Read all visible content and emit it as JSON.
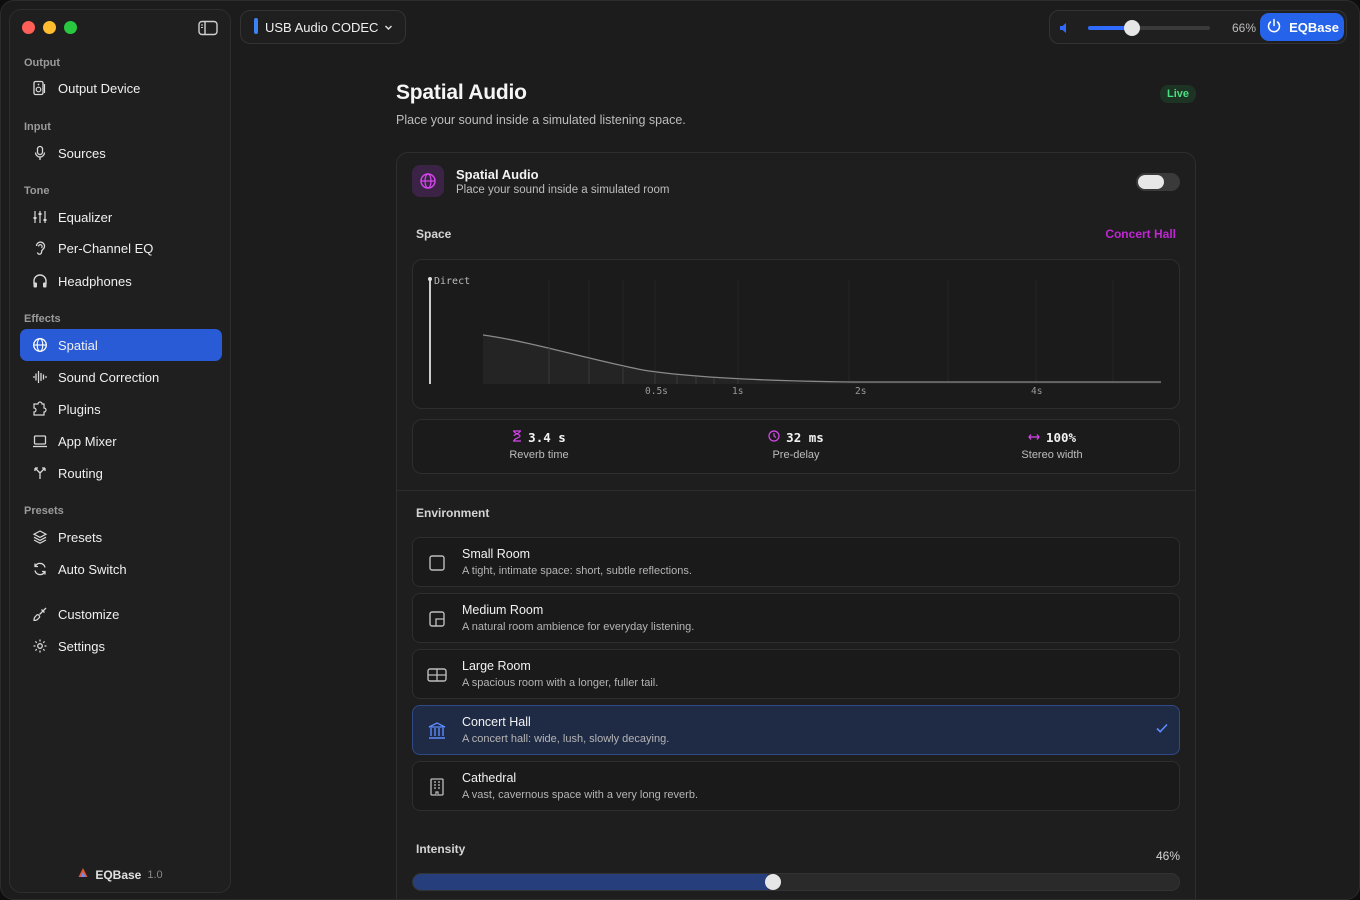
{
  "sidebar": {
    "sections": {
      "output": "Output",
      "input": "Input",
      "tone": "Tone",
      "effects": "Effects",
      "presets": "Presets"
    },
    "items": {
      "output_device": "Output Device",
      "sources": "Sources",
      "equalizer": "Equalizer",
      "per_channel_eq": "Per-Channel EQ",
      "headphones": "Headphones",
      "spatial": "Spatial",
      "sound_correction": "Sound Correction",
      "plugins": "Plugins",
      "app_mixer": "App Mixer",
      "routing": "Routing",
      "presets": "Presets",
      "auto_switch": "Auto Switch",
      "customize": "Customize",
      "settings": "Settings"
    },
    "footer": {
      "app_name": "EQBase",
      "version": "1.0"
    }
  },
  "topbar": {
    "device": "USB Audio CODEC",
    "volume_percent": 66,
    "volume_label": "66%",
    "power_label": "EQBase"
  },
  "page": {
    "title": "Spatial Audio",
    "subtitle": "Place your sound inside a simulated listening space.",
    "status_badge": "Live"
  },
  "card": {
    "title": "Spatial Audio",
    "subtitle": "Place your sound inside a simulated room",
    "enabled": false
  },
  "space": {
    "label": "Space",
    "value": "Concert Hall",
    "graph": {
      "direct_label": "Direct",
      "ticks": [
        "0.5s",
        "1s",
        "2s",
        "4s"
      ]
    }
  },
  "stats": {
    "reverb": {
      "value": "3.4 s",
      "label": "Reverb time"
    },
    "predelay": {
      "value": "32 ms",
      "label": "Pre-delay"
    },
    "width": {
      "value": "100%",
      "label": "Stereo width"
    }
  },
  "environment": {
    "label": "Environment",
    "options": [
      {
        "name": "Small Room",
        "desc": "A tight, intimate space: short, subtle reflections.",
        "icon": "square-icon"
      },
      {
        "name": "Medium Room",
        "desc": "A natural room ambience for everyday listening.",
        "icon": "room-medium-icon"
      },
      {
        "name": "Large Room",
        "desc": "A spacious room with a longer, fuller tail.",
        "icon": "room-large-icon"
      },
      {
        "name": "Concert Hall",
        "desc": "A concert hall: wide, lush, slowly decaying.",
        "icon": "building-columns-icon"
      },
      {
        "name": "Cathedral",
        "desc": "A vast, cavernous space with a very long reverb.",
        "icon": "building-icon"
      }
    ],
    "selected": "Concert Hall"
  },
  "intensity": {
    "label": "Intensity",
    "value_percent": 46,
    "value_label": "46%"
  },
  "colors": {
    "accent": "#2563eb",
    "spatial_accent": "#c026d3",
    "live": "#4ade80"
  }
}
